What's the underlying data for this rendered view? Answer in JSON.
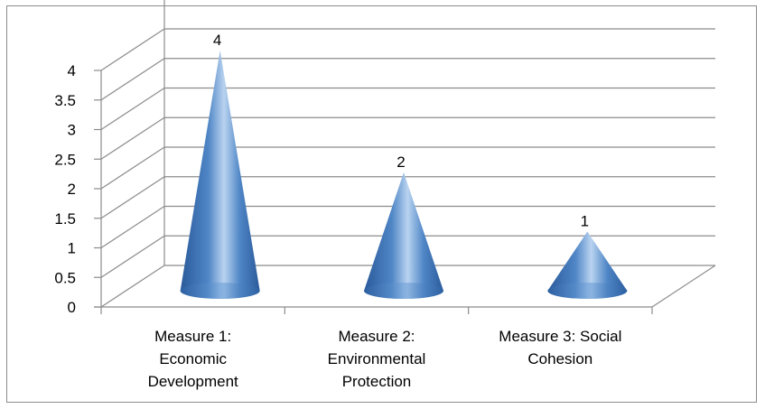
{
  "chart_data": {
    "type": "bar",
    "style": "3d-cone",
    "categories": [
      [
        "Measure 1:",
        "Economic",
        "Development"
      ],
      [
        "Measure 2:",
        "Environmental",
        "Protection"
      ],
      [
        "Measure 3: Social",
        "Cohesion"
      ]
    ],
    "values": [
      4,
      2,
      1
    ],
    "data_labels": [
      "4",
      "2",
      "1"
    ],
    "title": "",
    "xlabel": "",
    "ylabel": "",
    "ylim": [
      0,
      4
    ],
    "yticks": [
      "0",
      "0.5",
      "1",
      "1.5",
      "2",
      "2.5",
      "3",
      "3.5",
      "4"
    ],
    "grid": true,
    "legend": "none",
    "colors": {
      "cone_dark": "#2a5a9a",
      "cone_mid": "#4f86c6",
      "cone_light": "#b9d3f0",
      "grid": "#8c8c8c"
    }
  }
}
